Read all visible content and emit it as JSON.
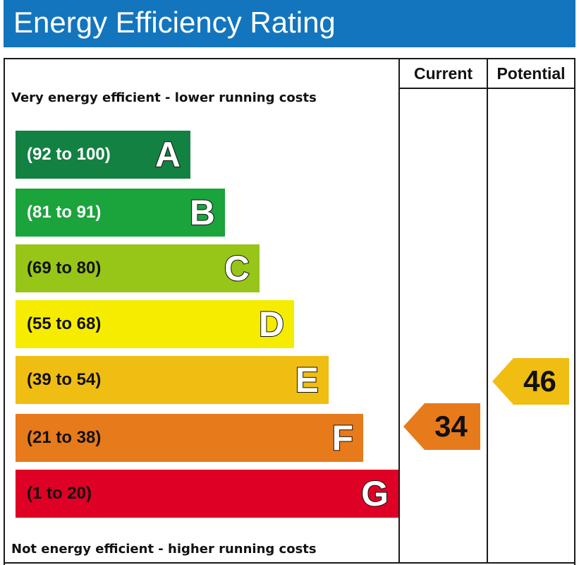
{
  "title": "Energy Efficiency Rating",
  "columns": {
    "current": "Current",
    "potential": "Potential"
  },
  "top_caption": "Very energy efficient - lower running costs",
  "bottom_caption": "Not energy efficient - higher running costs",
  "chart_data": {
    "type": "bar",
    "categories": [
      "A",
      "B",
      "C",
      "D",
      "E",
      "F",
      "G"
    ],
    "bands": [
      {
        "letter": "A",
        "range": "(92 to 100)",
        "min": 92,
        "max": 100,
        "color": "#138142",
        "text_color": "#ffffff"
      },
      {
        "letter": "B",
        "range": "(81 to 91)",
        "min": 81,
        "max": 91,
        "color": "#1ba33c",
        "text_color": "#ffffff"
      },
      {
        "letter": "C",
        "range": "(69 to 80)",
        "min": 69,
        "max": 80,
        "color": "#97c618",
        "text_color": "#111111"
      },
      {
        "letter": "D",
        "range": "(55 to 68)",
        "min": 55,
        "max": 68,
        "color": "#f6ec00",
        "text_color": "#111111"
      },
      {
        "letter": "E",
        "range": "(39 to 54)",
        "min": 39,
        "max": 54,
        "color": "#f0bd12",
        "text_color": "#111111"
      },
      {
        "letter": "F",
        "range": "(21 to 38)",
        "min": 21,
        "max": 38,
        "color": "#e77a1b",
        "text_color": "#111111"
      },
      {
        "letter": "G",
        "range": "(1 to 20)",
        "min": 1,
        "max": 20,
        "color": "#de0025",
        "text_color": "#111111"
      }
    ],
    "ratings": [
      {
        "name": "Current",
        "value": 34,
        "band": "F",
        "color": "#e77a1b"
      },
      {
        "name": "Potential",
        "value": 46,
        "band": "E",
        "color": "#f0bd12"
      }
    ]
  }
}
